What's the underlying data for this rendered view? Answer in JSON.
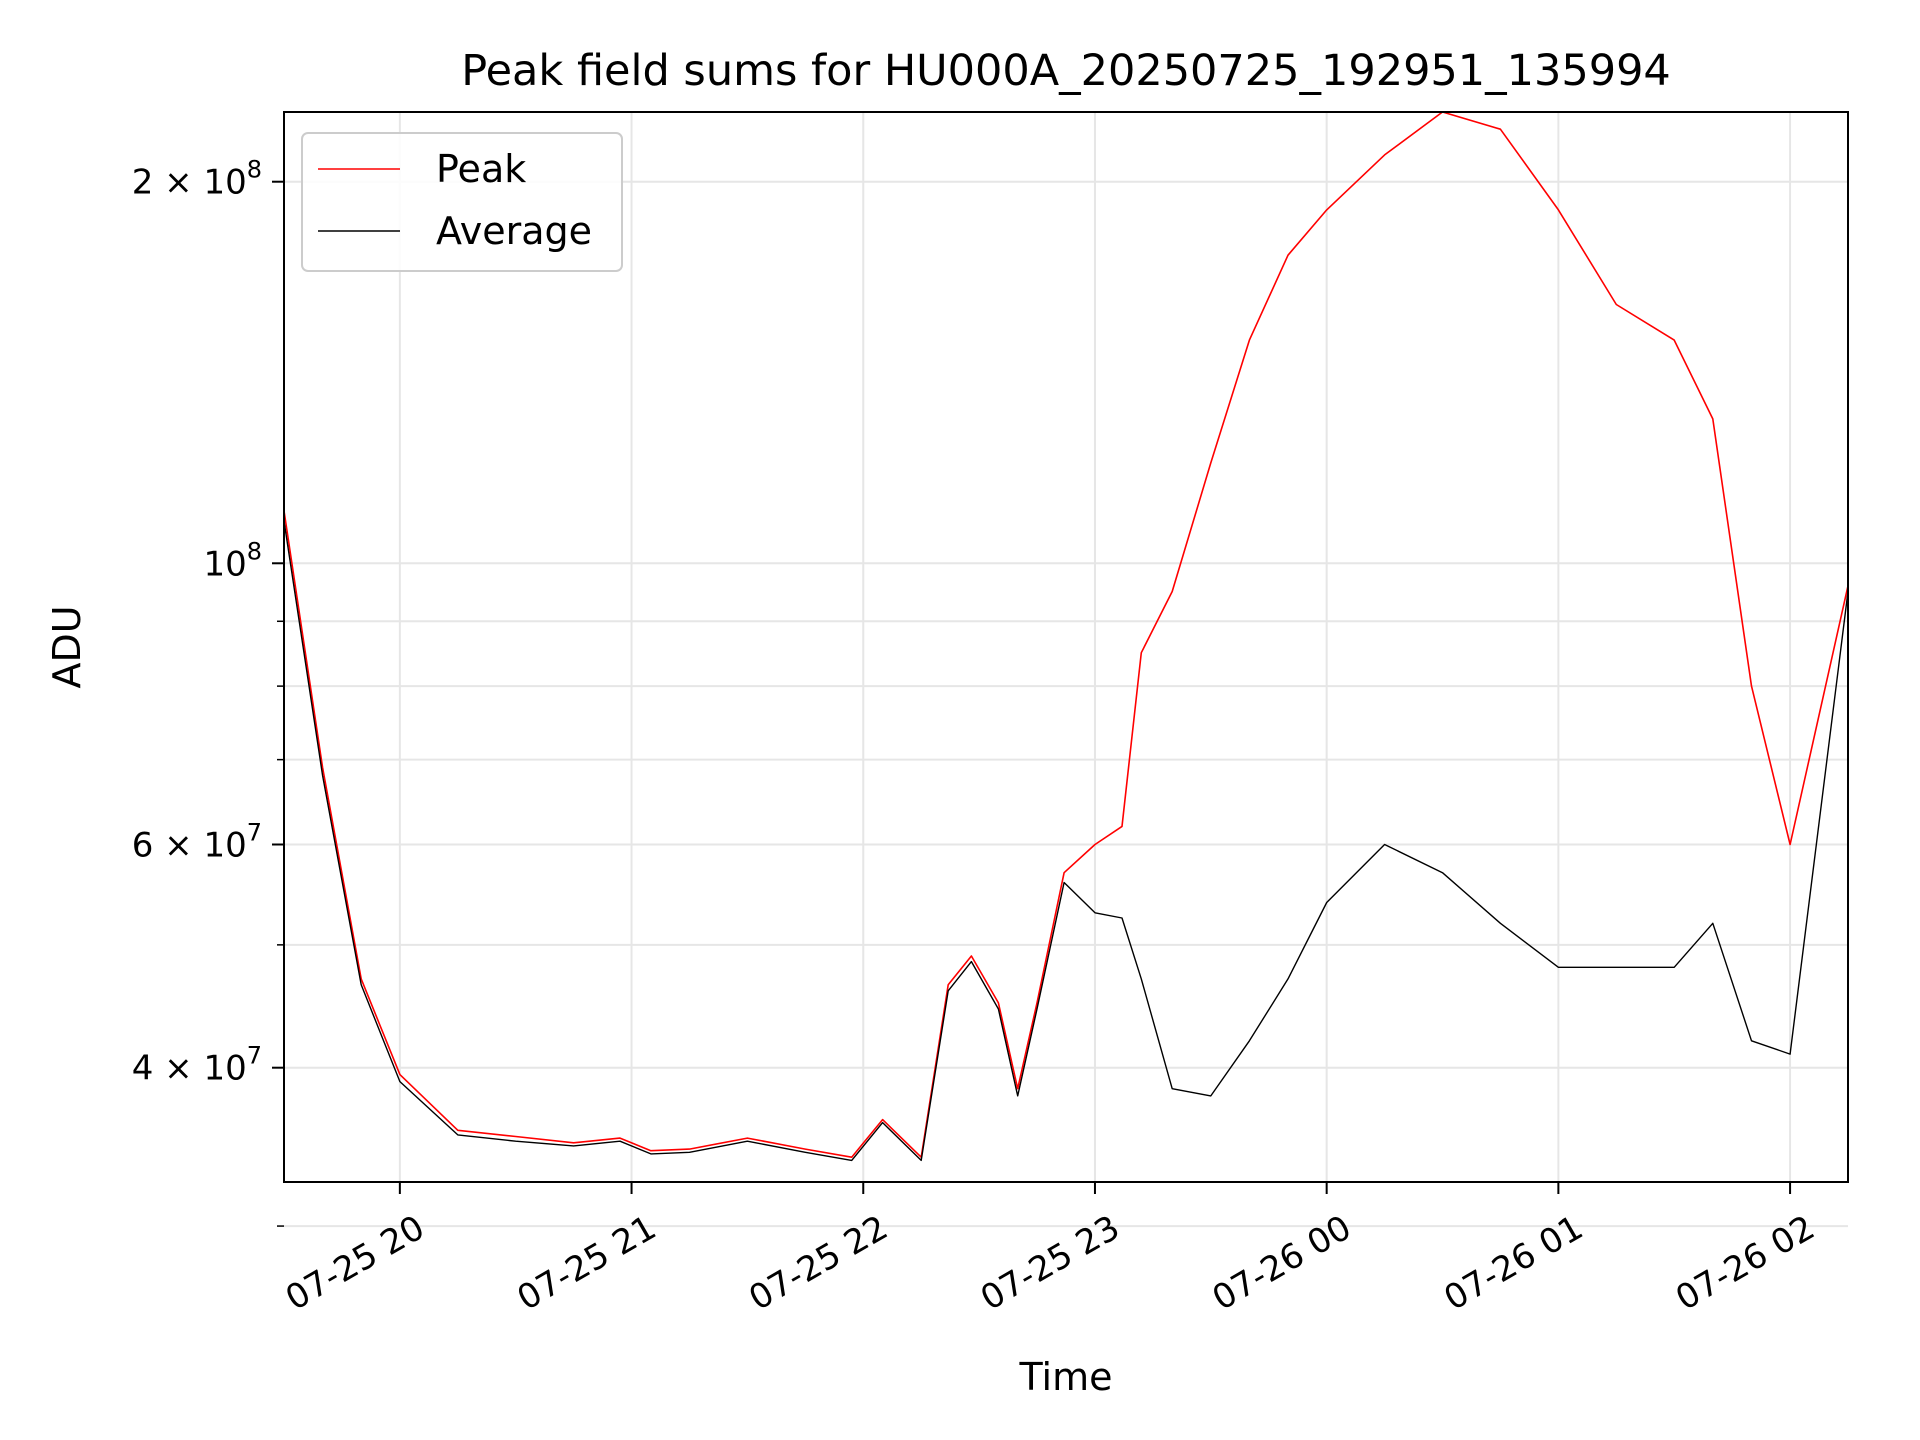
{
  "chart_data": {
    "type": "line",
    "title": "Peak field sums for HU000A_20250725_192951_135994",
    "xlabel": "Time",
    "ylabel": "ADU",
    "yscale": "log",
    "xlim": [
      "2025-07-25 19:30",
      "2025-07-26 02:15"
    ],
    "ylim": [
      32500000,
      227000000
    ],
    "grid": true,
    "legend": "top-left",
    "x_ticks": [
      {
        "t": "2025-07-25 20:00",
        "label": "07-25 20"
      },
      {
        "t": "2025-07-25 21:00",
        "label": "07-25 21"
      },
      {
        "t": "2025-07-25 22:00",
        "label": "07-25 22"
      },
      {
        "t": "2025-07-25 23:00",
        "label": "07-25 23"
      },
      {
        "t": "2025-07-26 00:00",
        "label": "07-26 00"
      },
      {
        "t": "2025-07-26 01:00",
        "label": "07-26 01"
      },
      {
        "t": "2025-07-26 02:00",
        "label": "07-26 02"
      }
    ],
    "y_ticks": [
      {
        "v": 40000000,
        "base": "4",
        "exp": "7"
      },
      {
        "v": 60000000,
        "base": "6",
        "exp": "7"
      },
      {
        "v": 100000000,
        "base": "",
        "exp": "8"
      },
      {
        "v": 200000000,
        "base": "2",
        "exp": "8"
      }
    ],
    "y_minor": [
      30000000,
      50000000,
      70000000,
      80000000,
      90000000
    ],
    "series": [
      {
        "name": "Peak",
        "color": "#ff0000",
        "x": [
          "2025-07-25 19:30",
          "2025-07-25 19:40",
          "2025-07-25 19:50",
          "2025-07-25 20:00",
          "2025-07-25 20:15",
          "2025-07-25 20:30",
          "2025-07-25 20:45",
          "2025-07-25 20:57",
          "2025-07-25 21:05",
          "2025-07-25 21:15",
          "2025-07-25 21:30",
          "2025-07-25 21:45",
          "2025-07-25 21:57",
          "2025-07-25 22:05",
          "2025-07-25 22:15",
          "2025-07-25 22:22",
          "2025-07-25 22:28",
          "2025-07-25 22:35",
          "2025-07-25 22:40",
          "2025-07-25 22:45",
          "2025-07-25 22:52",
          "2025-07-25 23:00",
          "2025-07-25 23:07",
          "2025-07-25 23:12",
          "2025-07-25 23:20",
          "2025-07-25 23:30",
          "2025-07-25 23:40",
          "2025-07-25 23:50",
          "2025-07-26 00:00",
          "2025-07-26 00:15",
          "2025-07-26 00:30",
          "2025-07-26 00:45",
          "2025-07-26 01:00",
          "2025-07-26 01:15",
          "2025-07-26 01:30",
          "2025-07-26 01:40",
          "2025-07-26 01:50",
          "2025-07-26 02:00",
          "2025-07-26 02:15"
        ],
        "values": [
          110000000,
          69000000,
          47000000,
          39500000,
          35700000,
          35300000,
          34900000,
          35200000,
          34400000,
          34500000,
          35200000,
          34500000,
          34000000,
          36400000,
          34000000,
          46500000,
          49000000,
          45000000,
          38500000,
          45000000,
          57000000,
          60000000,
          62000000,
          85000000,
          95000000,
          120000000,
          150000000,
          175000000,
          190000000,
          210000000,
          227000000,
          220000000,
          190000000,
          160000000,
          150000000,
          130000000,
          80000000,
          60000000,
          96000000
        ]
      },
      {
        "name": "Average",
        "color": "#000000",
        "x": [
          "2025-07-25 19:30",
          "2025-07-25 19:40",
          "2025-07-25 19:50",
          "2025-07-25 20:00",
          "2025-07-25 20:15",
          "2025-07-25 20:30",
          "2025-07-25 20:45",
          "2025-07-25 20:57",
          "2025-07-25 21:05",
          "2025-07-25 21:15",
          "2025-07-25 21:30",
          "2025-07-25 21:45",
          "2025-07-25 21:57",
          "2025-07-25 22:05",
          "2025-07-25 22:15",
          "2025-07-25 22:22",
          "2025-07-25 22:28",
          "2025-07-25 22:35",
          "2025-07-25 22:40",
          "2025-07-25 22:45",
          "2025-07-25 22:52",
          "2025-07-25 23:00",
          "2025-07-25 23:07",
          "2025-07-25 23:12",
          "2025-07-25 23:20",
          "2025-07-25 23:30",
          "2025-07-25 23:40",
          "2025-07-25 23:50",
          "2025-07-26 00:00",
          "2025-07-26 00:15",
          "2025-07-26 00:30",
          "2025-07-26 00:45",
          "2025-07-26 01:00",
          "2025-07-26 01:15",
          "2025-07-26 01:30",
          "2025-07-26 01:40",
          "2025-07-26 01:50",
          "2025-07-26 02:00",
          "2025-07-26 02:15"
        ],
        "values": [
          108000000,
          68000000,
          46500000,
          39000000,
          35400000,
          35000000,
          34700000,
          35000000,
          34200000,
          34300000,
          35000000,
          34300000,
          33800000,
          36200000,
          33800000,
          46000000,
          48500000,
          44500000,
          38000000,
          44500000,
          56000000,
          53000000,
          52500000,
          47000000,
          38500000,
          38000000,
          42000000,
          47000000,
          54000000,
          60000000,
          57000000,
          52000000,
          48000000,
          48000000,
          48000000,
          52000000,
          42000000,
          41000000,
          95000000
        ]
      }
    ]
  }
}
